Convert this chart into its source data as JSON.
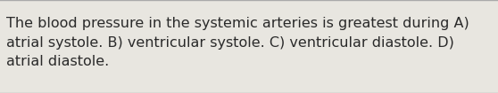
{
  "text": "The blood pressure in the systemic arteries is greatest during A)\natrial systole. B) ventricular systole. C) ventricular diastole. D)\natrial diastole.",
  "background_color": "#e8e6e0",
  "text_color": "#2a2a2a",
  "font_size": 11.5,
  "line_color": "#aaaaaa",
  "line_width": 1.0,
  "fig_width": 5.58,
  "fig_height": 1.05
}
